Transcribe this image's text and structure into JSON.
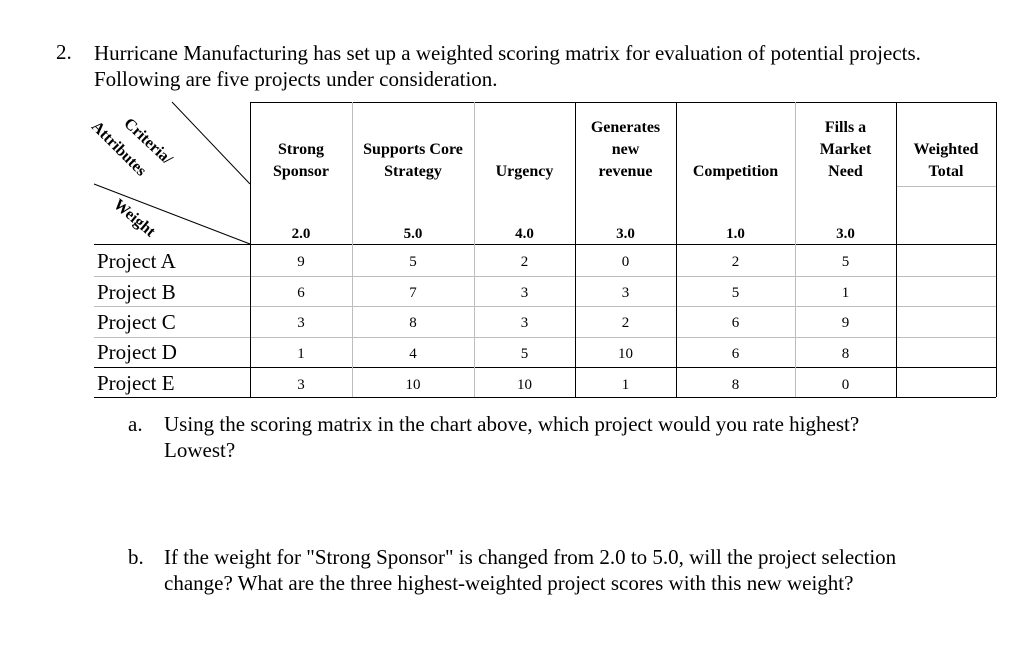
{
  "question": {
    "number": "2.",
    "text": "Hurricane Manufacturing has set up a weighted scoring matrix for evaluation of potential projects. Following are five projects under consideration."
  },
  "matrix": {
    "corner": {
      "criteria": "Criteria/",
      "attributes": "Attributes",
      "weight": "Weight"
    },
    "columns": [
      {
        "line1": "",
        "line2": "Strong",
        "line3": "Sponsor",
        "weight": "2.0"
      },
      {
        "line1": "",
        "line2": "Supports Core",
        "line3": "Strategy",
        "weight": "5.0"
      },
      {
        "line1": "",
        "line2": "",
        "line3": "Urgency",
        "weight": "4.0"
      },
      {
        "line1": "Generates",
        "line2": "new",
        "line3": "revenue",
        "weight": "3.0"
      },
      {
        "line1": "",
        "line2": "",
        "line3": "Competition",
        "weight": "1.0"
      },
      {
        "line1": "Fills a",
        "line2": "Market",
        "line3": "Need",
        "weight": "3.0"
      }
    ],
    "total_header": {
      "line1": "Weighted",
      "line2": "Total"
    },
    "rows": [
      {
        "name": "Project A",
        "scores": [
          "9",
          "5",
          "2",
          "0",
          "2",
          "5"
        ]
      },
      {
        "name": "Project B",
        "scores": [
          "6",
          "7",
          "3",
          "3",
          "5",
          "1"
        ]
      },
      {
        "name": "Project C",
        "scores": [
          "3",
          "8",
          "3",
          "2",
          "6",
          "9"
        ]
      },
      {
        "name": "Project D",
        "scores": [
          "1",
          "4",
          "5",
          "10",
          "6",
          "8"
        ]
      },
      {
        "name": "Project E",
        "scores": [
          "3",
          "10",
          "10",
          "1",
          "8",
          "0"
        ]
      }
    ]
  },
  "subquestions": [
    {
      "mark": "a.",
      "text": "Using the scoring matrix in the chart above, which project would you rate highest? Lowest?"
    },
    {
      "mark": "b.",
      "text": "If the weight for \"Strong Sponsor\" is changed from 2.0 to 5.0, will the project selection change? What are the three highest-weighted project scores with this new weight?"
    }
  ]
}
